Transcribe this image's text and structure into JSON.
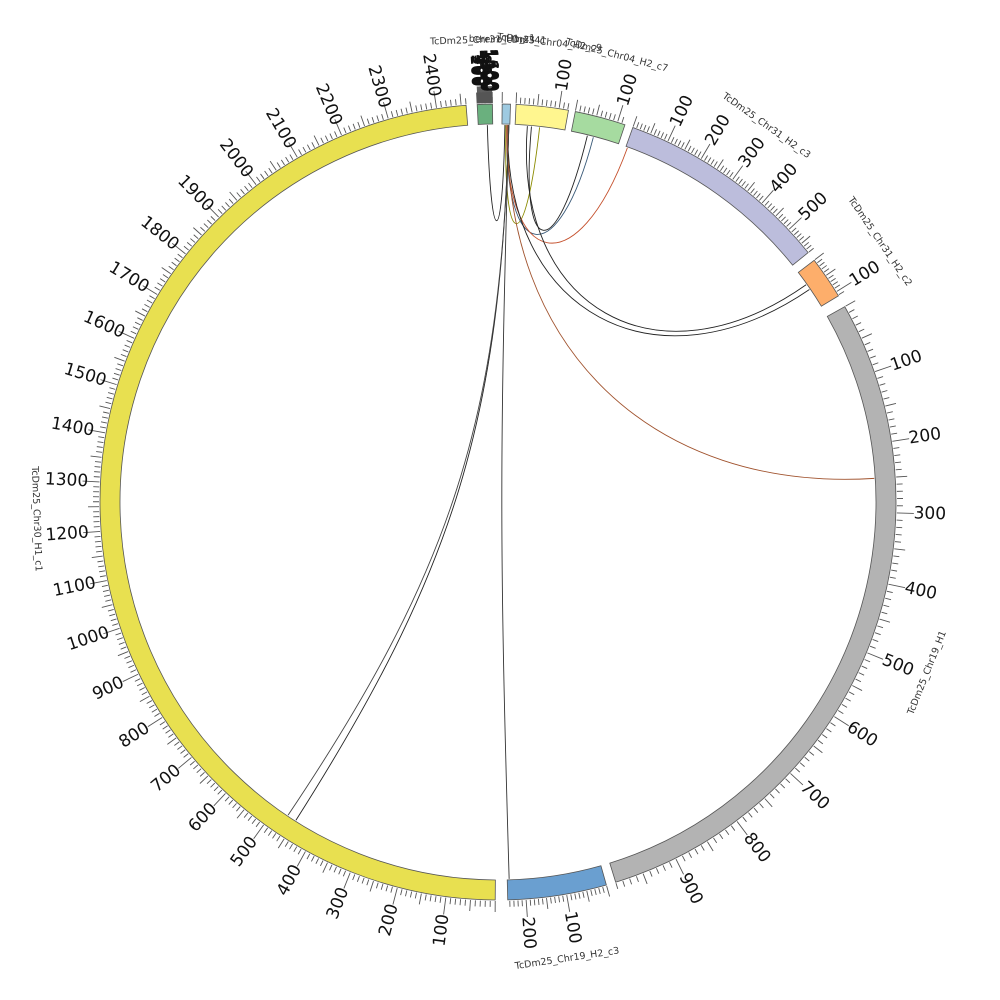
{
  "chart_data": {
    "type": "chord",
    "segments": [
      {
        "name": "bereiroTcDm341",
        "length": 8,
        "color": "#9ecae1",
        "major_ticks": []
      },
      {
        "name": "TcDm25_Chr04_H2_c9",
        "length": 122,
        "color": "#fff68f",
        "major_ticks": [
          100
        ]
      },
      {
        "name": "TcDm25_Chr04_H2_c7",
        "length": 118,
        "color": "#a6dba0",
        "major_ticks": [
          100
        ]
      },
      {
        "name": "TcDm25_Chr31_H2_c3",
        "length": 580,
        "color": "#bcbddc",
        "major_ticks": [
          100,
          200,
          300,
          400,
          500
        ]
      },
      {
        "name": "TcDm25_Chr31_H2_c2",
        "length": 112,
        "color": "#fdae6b",
        "major_ticks": [
          100
        ]
      },
      {
        "name": "TcDm25_Chr19_H1",
        "length": 990,
        "color": "#b3b3b3",
        "major_ticks": [
          100,
          200,
          300,
          400,
          500,
          600,
          700,
          800,
          900
        ]
      },
      {
        "name": "TcDm25_Chr19_H2_c3",
        "length": 245,
        "color": "#6a9fd0",
        "major_ticks": [
          100,
          200
        ]
      },
      {
        "name": "TcDm25_Chr30_H1_c1",
        "length": 2460,
        "color": "#e8e050",
        "major_ticks": [
          100,
          200,
          300,
          400,
          500,
          600,
          700,
          800,
          900,
          1000,
          1100,
          1200,
          1300,
          1400,
          1500,
          1600,
          1700,
          1800,
          1900,
          2000,
          2100,
          2200,
          2300,
          2400
        ]
      },
      {
        "name": "TcDm25_Chr31_H1_c1",
        "length": 1660,
        "color": "#6ab07e",
        "major_ticks": [
          100,
          200,
          300,
          400,
          500,
          600,
          700,
          800,
          900,
          1000,
          1100,
          1200,
          1300,
          1400,
          1500,
          1600
        ]
      }
    ],
    "links": [
      {
        "from": "bereiroTcDm341",
        "from_pos": 3,
        "to": "TcDm25_Chr31_H1_c1",
        "to_pos": 1040,
        "color": "#222222"
      },
      {
        "from": "bereiroTcDm341",
        "from_pos": 4,
        "to": "TcDm25_Chr04_H2_c9",
        "to_pos": 60,
        "color": "#8b8b00"
      },
      {
        "from": "bereiroTcDm341",
        "from_pos": 5,
        "to": "TcDm25_Chr04_H2_c7",
        "to_pos": 55,
        "color": "#3a5a78"
      },
      {
        "from": "bereiroTcDm341",
        "from_pos": 5,
        "to": "TcDm25_Chr31_H2_c3",
        "to_pos": 5,
        "color": "#c44e2a"
      },
      {
        "from": "bereiroTcDm341",
        "from_pos": 6,
        "to": "TcDm25_Chr31_H2_c2",
        "to_pos": 56,
        "color": "#222222"
      },
      {
        "from": "bereiroTcDm341",
        "from_pos": 6,
        "to": "TcDm25_Chr19_H1",
        "to_pos": 250,
        "color": "#a0522d"
      },
      {
        "from": "bereiroTcDm341",
        "from_pos": 7,
        "to": "TcDm25_Chr19_H2_c3",
        "to_pos": 240,
        "color": "#333333"
      },
      {
        "from": "bereiroTcDm341",
        "from_pos": 7,
        "to": "TcDm25_Chr30_H1_c1",
        "to_pos": 450,
        "color": "#222222"
      },
      {
        "from": "bereiroTcDm341",
        "from_pos": 7,
        "to": "TcDm25_Chr30_H1_c1",
        "to_pos": 470,
        "color": "#444444"
      },
      {
        "from": "TcDm25_Chr04_H2_c9",
        "from_pos": 40,
        "to": "TcDm25_Chr04_H2_c7",
        "to_pos": 40,
        "color": "#222222"
      },
      {
        "from": "TcDm25_Chr04_H2_c9",
        "from_pos": 30,
        "to": "TcDm25_Chr31_H2_c2",
        "to_pos": 40,
        "color": "#222222"
      }
    ]
  }
}
